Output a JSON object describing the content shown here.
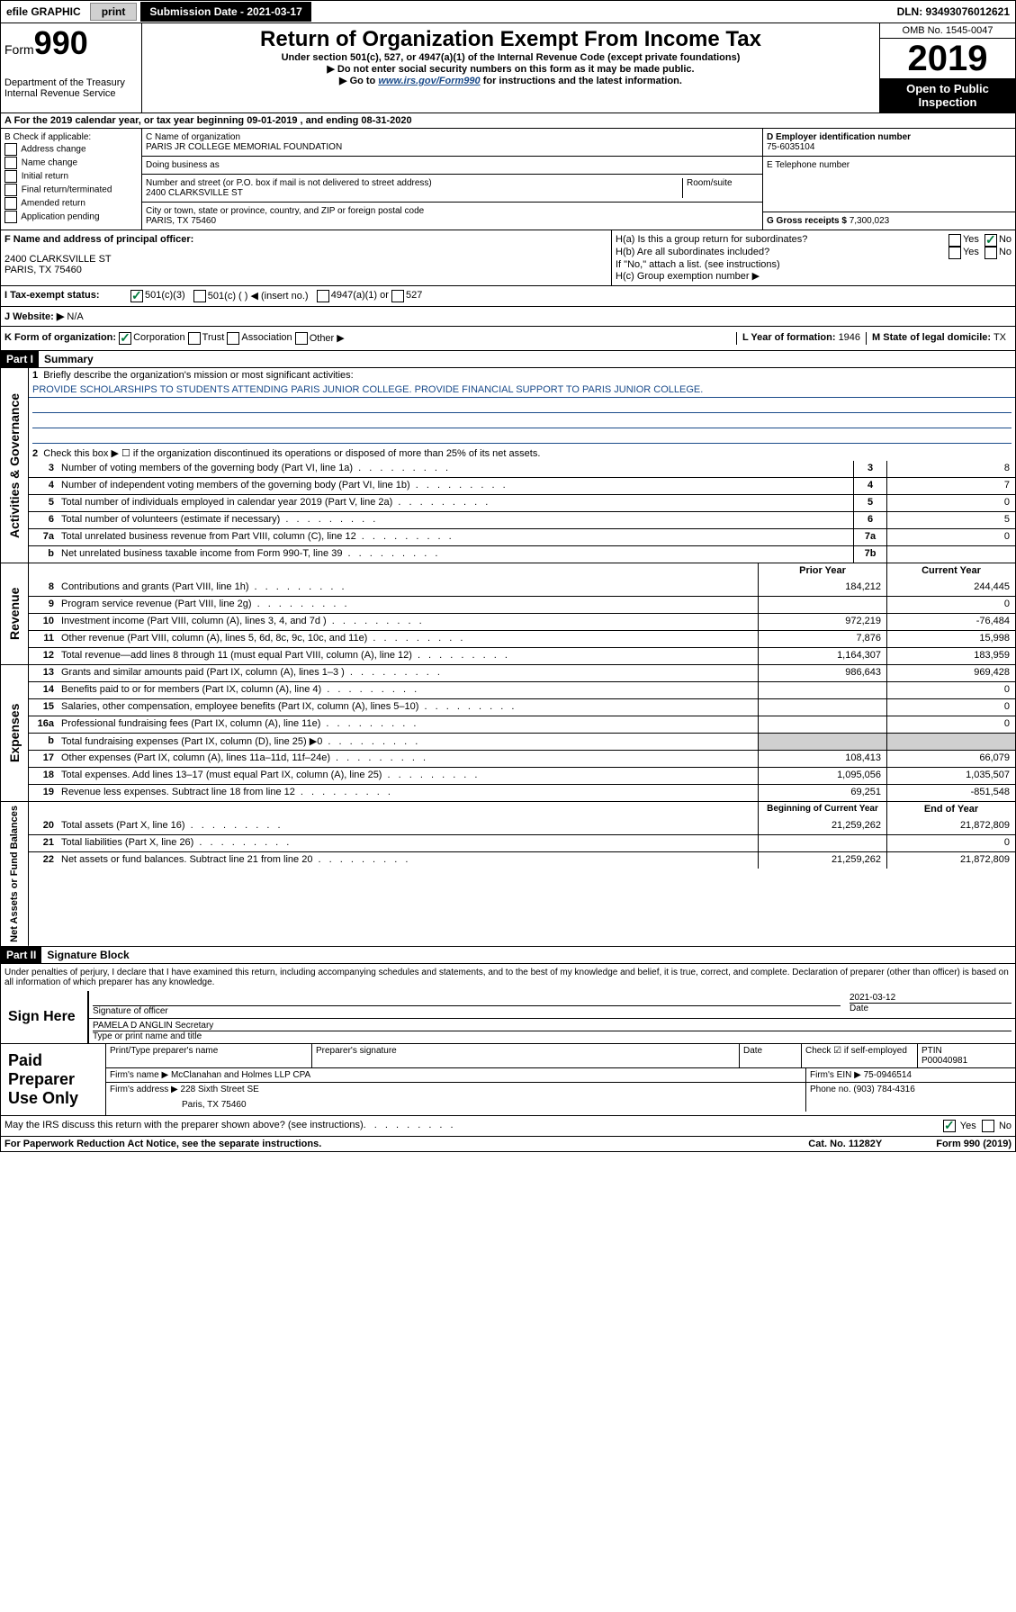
{
  "top": {
    "efile": "efile GRAPHIC",
    "print": "print",
    "submission": "Submission Date - 2021-03-17",
    "dln": "DLN: 93493076012621"
  },
  "header": {
    "form_label": "Form",
    "form_num": "990",
    "dept": "Department of the Treasury\nInternal Revenue Service",
    "title": "Return of Organization Exempt From Income Tax",
    "sub1": "Under section 501(c), 527, or 4947(a)(1) of the Internal Revenue Code (except private foundations)",
    "sub2": "▶ Do not enter social security numbers on this form as it may be made public.",
    "sub3_pre": "▶ Go to ",
    "sub3_link": "www.irs.gov/Form990",
    "sub3_post": " for instructions and the latest information.",
    "omb": "OMB No. 1545-0047",
    "year": "2019",
    "open": "Open to Public Inspection"
  },
  "period": "A For the 2019 calendar year, or tax year beginning 09-01-2019    , and ending 08-31-2020",
  "section_b": {
    "label": "B Check if applicable:",
    "items": [
      "Address change",
      "Name change",
      "Initial return",
      "Final return/terminated",
      "Amended return",
      "Application pending"
    ]
  },
  "section_c": {
    "name_label": "C Name of organization",
    "name": "PARIS JR COLLEGE MEMORIAL FOUNDATION",
    "dba_label": "Doing business as",
    "addr_label": "Number and street (or P.O. box if mail is not delivered to street address)",
    "room_label": "Room/suite",
    "addr": "2400 CLARKSVILLE ST",
    "city_label": "City or town, state or province, country, and ZIP or foreign postal code",
    "city": "PARIS, TX  75460"
  },
  "section_d": {
    "ein_label": "D Employer identification number",
    "ein": "75-6035104",
    "phone_label": "E Telephone number",
    "gross_label": "G Gross receipts $",
    "gross": "7,300,023"
  },
  "section_f": {
    "label": "F  Name and address of principal officer:",
    "addr1": "2400 CLARKSVILLE ST",
    "addr2": "PARIS, TX  75460"
  },
  "section_h": {
    "ha": "H(a)  Is this a group return for subordinates?",
    "hb": "H(b)  Are all subordinates included?",
    "hb_note": "If \"No,\" attach a list. (see instructions)",
    "hc": "H(c)  Group exemption number ▶",
    "yes": "Yes",
    "no": "No"
  },
  "section_i": {
    "label": "I   Tax-exempt status:",
    "opt1": "501(c)(3)",
    "opt2": "501(c) (    ) ◀ (insert no.)",
    "opt3": "4947(a)(1) or",
    "opt4": "527"
  },
  "section_j": {
    "label": "J   Website: ▶",
    "value": "N/A"
  },
  "section_k": {
    "label": "K Form of organization:",
    "opts": [
      "Corporation",
      "Trust",
      "Association",
      "Other ▶"
    ],
    "l_label": "L Year of formation:",
    "l_val": "1946",
    "m_label": "M State of legal domicile:",
    "m_val": "TX"
  },
  "part1": {
    "header": "Part I",
    "title": "Summary",
    "q1": "Briefly describe the organization's mission or most significant activities:",
    "mission": "PROVIDE SCHOLARSHIPS TO STUDENTS ATTENDING PARIS JUNIOR COLLEGE. PROVIDE FINANCIAL SUPPORT TO PARIS JUNIOR COLLEGE.",
    "q2": "Check this box ▶ ☐  if the organization discontinued its operations or disposed of more than 25% of its net assets.",
    "lines_ag": [
      {
        "n": "3",
        "d": "Number of voting members of the governing body (Part VI, line 1a)",
        "box": "3",
        "v": "8"
      },
      {
        "n": "4",
        "d": "Number of independent voting members of the governing body (Part VI, line 1b)",
        "box": "4",
        "v": "7"
      },
      {
        "n": "5",
        "d": "Total number of individuals employed in calendar year 2019 (Part V, line 2a)",
        "box": "5",
        "v": "0"
      },
      {
        "n": "6",
        "d": "Total number of volunteers (estimate if necessary)",
        "box": "6",
        "v": "5"
      },
      {
        "n": "7a",
        "d": "Total unrelated business revenue from Part VIII, column (C), line 12",
        "box": "7a",
        "v": "0"
      },
      {
        "n": "b",
        "d": "Net unrelated business taxable income from Form 990-T, line 39",
        "box": "7b",
        "v": ""
      }
    ],
    "col_prior": "Prior Year",
    "col_current": "Current Year",
    "lines_rev": [
      {
        "n": "8",
        "d": "Contributions and grants (Part VIII, line 1h)",
        "p": "184,212",
        "c": "244,445"
      },
      {
        "n": "9",
        "d": "Program service revenue (Part VIII, line 2g)",
        "p": "",
        "c": "0"
      },
      {
        "n": "10",
        "d": "Investment income (Part VIII, column (A), lines 3, 4, and 7d )",
        "p": "972,219",
        "c": "-76,484"
      },
      {
        "n": "11",
        "d": "Other revenue (Part VIII, column (A), lines 5, 6d, 8c, 9c, 10c, and 11e)",
        "p": "7,876",
        "c": "15,998"
      },
      {
        "n": "12",
        "d": "Total revenue—add lines 8 through 11 (must equal Part VIII, column (A), line 12)",
        "p": "1,164,307",
        "c": "183,959"
      }
    ],
    "lines_exp": [
      {
        "n": "13",
        "d": "Grants and similar amounts paid (Part IX, column (A), lines 1–3 )",
        "p": "986,643",
        "c": "969,428"
      },
      {
        "n": "14",
        "d": "Benefits paid to or for members (Part IX, column (A), line 4)",
        "p": "",
        "c": "0"
      },
      {
        "n": "15",
        "d": "Salaries, other compensation, employee benefits (Part IX, column (A), lines 5–10)",
        "p": "",
        "c": "0"
      },
      {
        "n": "16a",
        "d": "Professional fundraising fees (Part IX, column (A), line 11e)",
        "p": "",
        "c": "0"
      },
      {
        "n": "b",
        "d": "Total fundraising expenses (Part IX, column (D), line 25) ▶0",
        "p": "shaded",
        "c": "shaded"
      },
      {
        "n": "17",
        "d": "Other expenses (Part IX, column (A), lines 11a–11d, 11f–24e)",
        "p": "108,413",
        "c": "66,079"
      },
      {
        "n": "18",
        "d": "Total expenses. Add lines 13–17 (must equal Part IX, column (A), line 25)",
        "p": "1,095,056",
        "c": "1,035,507"
      },
      {
        "n": "19",
        "d": "Revenue less expenses. Subtract line 18 from line 12",
        "p": "69,251",
        "c": "-851,548"
      }
    ],
    "col_begin": "Beginning of Current Year",
    "col_end": "End of Year",
    "lines_na": [
      {
        "n": "20",
        "d": "Total assets (Part X, line 16)",
        "p": "21,259,262",
        "c": "21,872,809"
      },
      {
        "n": "21",
        "d": "Total liabilities (Part X, line 26)",
        "p": "",
        "c": "0"
      },
      {
        "n": "22",
        "d": "Net assets or fund balances. Subtract line 21 from line 20",
        "p": "21,259,262",
        "c": "21,872,809"
      }
    ],
    "side_ag": "Activities & Governance",
    "side_rev": "Revenue",
    "side_exp": "Expenses",
    "side_na": "Net Assets or Fund Balances"
  },
  "part2": {
    "header": "Part II",
    "title": "Signature Block",
    "perjury": "Under penalties of perjury, I declare that I have examined this return, including accompanying schedules and statements, and to the best of my knowledge and belief, it is true, correct, and complete. Declaration of preparer (other than officer) is based on all information of which preparer has any knowledge.",
    "sign_here": "Sign Here",
    "sig_officer": "Signature of officer",
    "sig_date": "2021-03-12",
    "date_label": "Date",
    "officer_name": "PAMELA D ANGLIN  Secretary",
    "type_name": "Type or print name and title",
    "paid": "Paid Preparer Use Only",
    "prep_name_label": "Print/Type preparer's name",
    "prep_sig_label": "Preparer's signature",
    "check_self": "Check ☑ if self-employed",
    "ptin_label": "PTIN",
    "ptin": "P00040981",
    "firm_name_label": "Firm's name      ▶",
    "firm_name": "McClanahan and Holmes LLP CPA",
    "firm_ein_label": "Firm's EIN ▶",
    "firm_ein": "75-0946514",
    "firm_addr_label": "Firm's address ▶",
    "firm_addr1": "228 Sixth Street SE",
    "firm_addr2": "Paris, TX  75460",
    "phone_label": "Phone no.",
    "phone": "(903) 784-4316"
  },
  "discuss": "May the IRS discuss this return with the preparer shown above? (see instructions)",
  "footer": {
    "left": "For Paperwork Reduction Act Notice, see the separate instructions.",
    "center": "Cat. No. 11282Y",
    "right": "Form 990 (2019)"
  }
}
